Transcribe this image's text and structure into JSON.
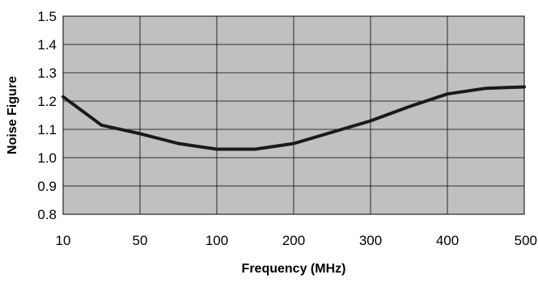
{
  "chart_data": {
    "type": "line",
    "title": "",
    "xlabel": "Frequency (MHz)",
    "ylabel": "Noise Figure",
    "x_tick_labels": [
      "10",
      "50",
      "100",
      "200",
      "300",
      "400",
      "500"
    ],
    "y_tick_labels": [
      "0.8",
      "0.9",
      "1.0",
      "1.1",
      "1.2",
      "1.3",
      "1.4",
      "1.5"
    ],
    "ylim": [
      0.8,
      1.5
    ],
    "y_tick_values": [
      0.8,
      0.9,
      1.0,
      1.1,
      1.2,
      1.3,
      1.4,
      1.5
    ],
    "grid": true,
    "plot_background": "#c0c0c0",
    "line_color": "#1a1a1a",
    "series": [
      {
        "x": [
          "10",
          "30",
          "50",
          "75",
          "100",
          "150",
          "200",
          "250",
          "300",
          "350",
          "400",
          "450",
          "500"
        ],
        "values": [
          1.215,
          1.115,
          1.085,
          1.05,
          1.03,
          1.03,
          1.05,
          1.09,
          1.13,
          1.18,
          1.225,
          1.245,
          1.25
        ]
      }
    ]
  }
}
